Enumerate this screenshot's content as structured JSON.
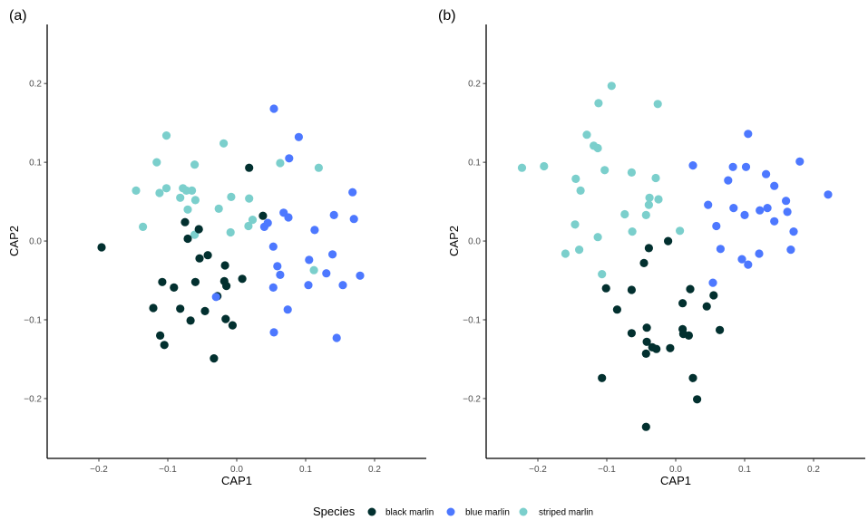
{
  "chart_data": [
    {
      "type": "scatter",
      "panel_label": "(a)",
      "xlabel": "CAP1",
      "ylabel": "CAP2",
      "xlim": [
        -0.275,
        0.275
      ],
      "ylim": [
        -0.276,
        0.275
      ],
      "xticks": [
        -0.2,
        -0.1,
        0.0,
        0.1,
        0.2
      ],
      "xtick_labels": [
        "−0.2",
        "−0.1",
        "0.0",
        "0.1",
        "0.2"
      ],
      "yticks": [
        -0.2,
        -0.1,
        0.0,
        0.1,
        0.2
      ],
      "ytick_labels": [
        "−0.2",
        "−0.1",
        "0.0",
        "0.1",
        "0.2"
      ],
      "grid": false,
      "series": [
        {
          "name": "striped marlin",
          "points": [
            [
              -0.102,
              0.134
            ],
            [
              -0.116,
              0.1
            ],
            [
              -0.019,
              0.124
            ],
            [
              -0.061,
              0.097
            ],
            [
              -0.146,
              0.064
            ],
            [
              -0.112,
              0.061
            ],
            [
              -0.102,
              0.067
            ],
            [
              -0.078,
              0.067
            ],
            [
              -0.073,
              0.064
            ],
            [
              -0.065,
              0.064
            ],
            [
              -0.082,
              0.055
            ],
            [
              -0.06,
              0.052
            ],
            [
              -0.071,
              0.04
            ],
            [
              -0.008,
              0.056
            ],
            [
              0.018,
              0.054
            ],
            [
              -0.026,
              0.041
            ],
            [
              -0.136,
              0.018
            ],
            [
              -0.061,
              0.008
            ],
            [
              -0.009,
              0.011
            ],
            [
              0.023,
              0.027
            ],
            [
              0.017,
              0.019
            ],
            [
              0.063,
              0.099
            ],
            [
              0.119,
              0.093
            ],
            [
              0.112,
              -0.037
            ]
          ]
        },
        {
          "name": "blue marlin",
          "points": [
            [
              0.054,
              0.168
            ],
            [
              0.09,
              0.132
            ],
            [
              0.076,
              0.105
            ],
            [
              0.168,
              0.062
            ],
            [
              0.068,
              0.036
            ],
            [
              0.075,
              0.03
            ],
            [
              0.141,
              0.033
            ],
            [
              0.17,
              0.028
            ],
            [
              0.045,
              0.023
            ],
            [
              0.04,
              0.018
            ],
            [
              0.113,
              0.014
            ],
            [
              0.053,
              -0.007
            ],
            [
              0.139,
              -0.017
            ],
            [
              0.105,
              -0.024
            ],
            [
              0.059,
              -0.032
            ],
            [
              0.063,
              -0.043
            ],
            [
              0.13,
              -0.041
            ],
            [
              0.179,
              -0.044
            ],
            [
              0.104,
              -0.056
            ],
            [
              0.154,
              -0.056
            ],
            [
              0.053,
              -0.059
            ],
            [
              0.074,
              -0.087
            ],
            [
              0.054,
              -0.116
            ],
            [
              0.145,
              -0.123
            ]
          ]
        },
        {
          "name": "black marlin",
          "points": [
            [
              0.018,
              0.093
            ],
            [
              0.038,
              0.032
            ],
            [
              -0.075,
              0.024
            ],
            [
              -0.055,
              0.015
            ],
            [
              -0.071,
              0.003
            ],
            [
              -0.196,
              -0.008
            ],
            [
              -0.054,
              -0.022
            ],
            [
              -0.042,
              -0.018
            ],
            [
              -0.017,
              -0.031
            ],
            [
              -0.108,
              -0.052
            ],
            [
              -0.091,
              -0.059
            ],
            [
              -0.06,
              -0.052
            ],
            [
              -0.018,
              -0.051
            ],
            [
              -0.015,
              -0.057
            ],
            [
              0.008,
              -0.048
            ],
            [
              -0.028,
              -0.07
            ],
            [
              -0.121,
              -0.085
            ],
            [
              -0.082,
              -0.086
            ],
            [
              -0.046,
              -0.089
            ],
            [
              -0.067,
              -0.101
            ],
            [
              -0.016,
              -0.099
            ],
            [
              -0.006,
              -0.107
            ],
            [
              -0.111,
              -0.12
            ],
            [
              -0.105,
              -0.132
            ],
            [
              -0.033,
              -0.149
            ]
          ]
        },
        {
          "name": "blue marlin (overplotted)",
          "points": [
            [
              -0.03,
              -0.071
            ]
          ]
        }
      ]
    },
    {
      "type": "scatter",
      "panel_label": "(b)",
      "xlabel": "CAP1",
      "ylabel": "CAP2",
      "xlim": [
        -0.275,
        0.275
      ],
      "ylim": [
        -0.276,
        0.275
      ],
      "xticks": [
        -0.2,
        -0.1,
        0.0,
        0.1,
        0.2
      ],
      "xtick_labels": [
        "−0.2",
        "−0.1",
        "0.0",
        "0.1",
        "0.2"
      ],
      "yticks": [
        -0.2,
        -0.1,
        0.0,
        0.1,
        0.2
      ],
      "ytick_labels": [
        "−0.2",
        "−0.1",
        "0.0",
        "0.1",
        "0.2"
      ],
      "grid": false,
      "series": [
        {
          "name": "striped marlin",
          "points": [
            [
              -0.093,
              0.197
            ],
            [
              -0.112,
              0.175
            ],
            [
              -0.026,
              0.174
            ],
            [
              -0.129,
              0.135
            ],
            [
              -0.119,
              0.121
            ],
            [
              -0.113,
              0.118
            ],
            [
              -0.223,
              0.093
            ],
            [
              -0.191,
              0.095
            ],
            [
              -0.103,
              0.09
            ],
            [
              -0.064,
              0.087
            ],
            [
              -0.145,
              0.079
            ],
            [
              -0.029,
              0.08
            ],
            [
              -0.138,
              0.064
            ],
            [
              -0.038,
              0.055
            ],
            [
              -0.025,
              0.053
            ],
            [
              -0.039,
              0.046
            ],
            [
              -0.074,
              0.034
            ],
            [
              -0.043,
              0.033
            ],
            [
              -0.146,
              0.021
            ],
            [
              -0.063,
              0.012
            ],
            [
              0.006,
              0.013
            ],
            [
              -0.113,
              0.005
            ],
            [
              -0.14,
              -0.011
            ],
            [
              -0.16,
              -0.016
            ],
            [
              -0.107,
              -0.042
            ]
          ]
        },
        {
          "name": "blue marlin",
          "points": [
            [
              0.105,
              0.136
            ],
            [
              0.18,
              0.101
            ],
            [
              0.025,
              0.096
            ],
            [
              0.083,
              0.094
            ],
            [
              0.102,
              0.094
            ],
            [
              0.131,
              0.085
            ],
            [
              0.076,
              0.077
            ],
            [
              0.143,
              0.07
            ],
            [
              0.221,
              0.059
            ],
            [
              0.16,
              0.051
            ],
            [
              0.047,
              0.046
            ],
            [
              0.084,
              0.042
            ],
            [
              0.122,
              0.039
            ],
            [
              0.133,
              0.042
            ],
            [
              0.162,
              0.037
            ],
            [
              0.1,
              0.033
            ],
            [
              0.143,
              0.025
            ],
            [
              0.059,
              0.019
            ],
            [
              0.171,
              0.012
            ],
            [
              0.065,
              -0.01
            ],
            [
              0.167,
              -0.011
            ],
            [
              0.121,
              -0.016
            ],
            [
              0.096,
              -0.023
            ],
            [
              0.105,
              -0.03
            ],
            [
              0.054,
              -0.053
            ]
          ]
        },
        {
          "name": "black marlin",
          "points": [
            [
              -0.011,
              0.0
            ],
            [
              -0.039,
              -0.009
            ],
            [
              -0.046,
              -0.028
            ],
            [
              -0.101,
              -0.06
            ],
            [
              -0.064,
              -0.062
            ],
            [
              0.021,
              -0.061
            ],
            [
              0.055,
              -0.069
            ],
            [
              -0.085,
              -0.087
            ],
            [
              0.01,
              -0.079
            ],
            [
              0.045,
              -0.083
            ],
            [
              -0.042,
              -0.11
            ],
            [
              -0.064,
              -0.117
            ],
            [
              0.01,
              -0.112
            ],
            [
              0.011,
              -0.118
            ],
            [
              0.019,
              -0.12
            ],
            [
              0.064,
              -0.113
            ],
            [
              -0.042,
              -0.128
            ],
            [
              -0.034,
              -0.135
            ],
            [
              -0.028,
              -0.137
            ],
            [
              -0.008,
              -0.136
            ],
            [
              -0.043,
              -0.143
            ],
            [
              -0.107,
              -0.174
            ],
            [
              0.025,
              -0.174
            ],
            [
              0.031,
              -0.201
            ],
            [
              -0.043,
              -0.236
            ]
          ]
        }
      ]
    }
  ],
  "legend": {
    "title": "Species",
    "position": "bottom",
    "items": [
      {
        "label": "black marlin",
        "color": "#02302f"
      },
      {
        "label": "blue marlin",
        "color": "#4d78ff"
      },
      {
        "label": "striped marlin",
        "color": "#7bcfcc"
      }
    ]
  },
  "colors": {
    "black marlin": "#02302f",
    "blue marlin": "#4d78ff",
    "blue marlin (overplotted)": "#4d78ff",
    "striped marlin": "#7bcfcc"
  }
}
